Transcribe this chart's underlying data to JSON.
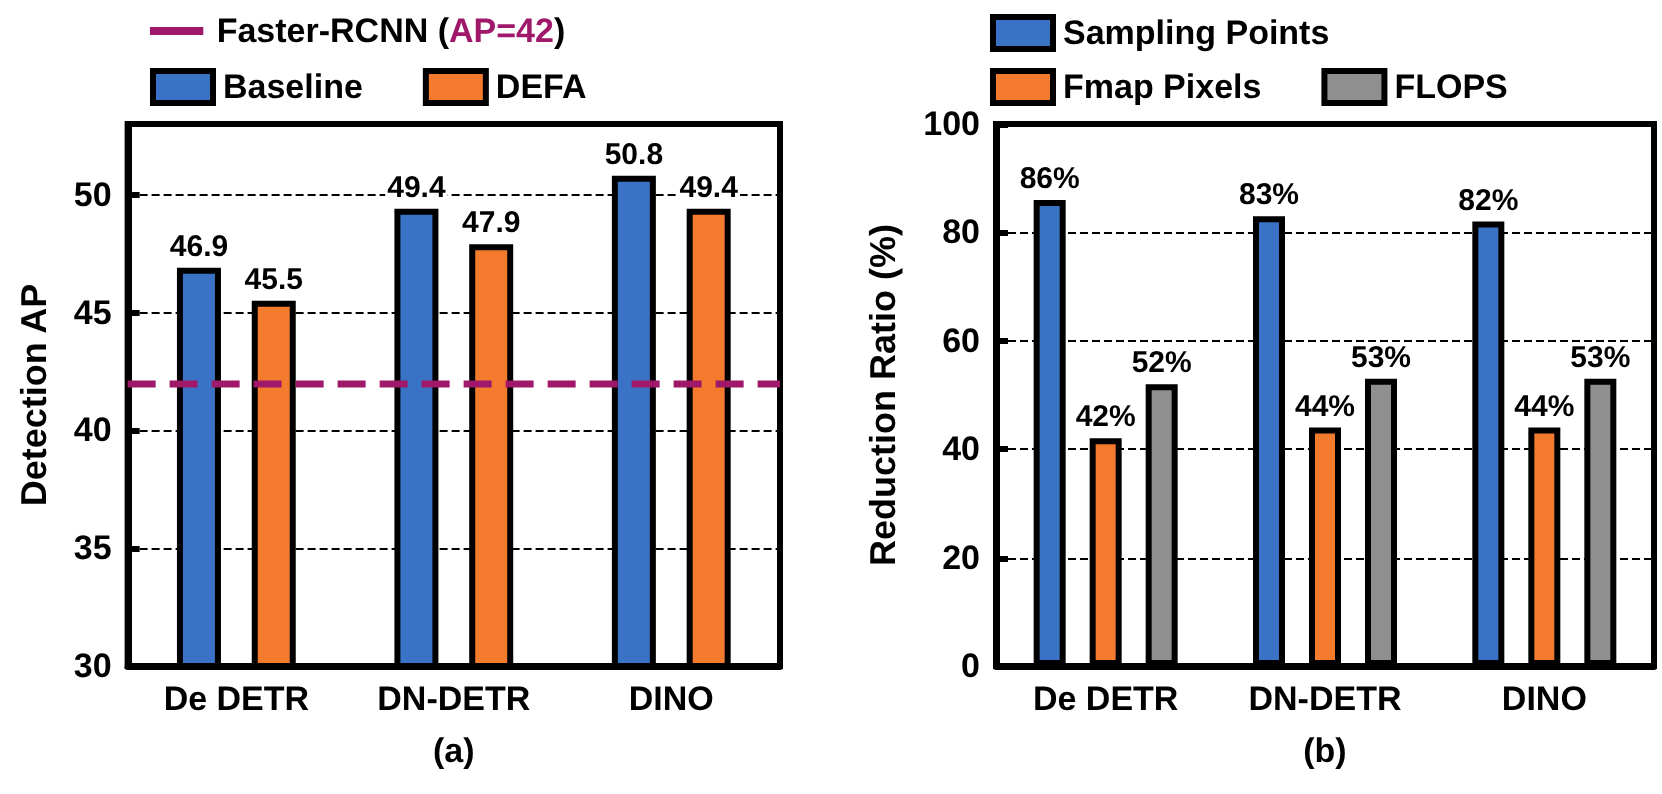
{
  "chart_data": [
    {
      "type": "bar",
      "xlabel": "(a)",
      "ylabel": "Detection AP",
      "categories": [
        "De DETR",
        "DN-DETR",
        "DINO"
      ],
      "series": [
        {
          "name": "Baseline",
          "color": "#3a73c5",
          "values": [
            46.9,
            49.4,
            50.8
          ]
        },
        {
          "name": "DEFA",
          "color": "#f47b2e",
          "values": [
            45.5,
            47.9,
            49.4
          ]
        }
      ],
      "ylim": [
        30,
        53
      ],
      "yticks": [
        30,
        35,
        40,
        45,
        50
      ],
      "grid": "y",
      "legend": "top",
      "data_labels": true,
      "ref_lines": [
        {
          "axis": "y",
          "value": 42,
          "label": "Faster-RCNN (AP=42)",
          "color": "#a0186a",
          "line_style": "dashed"
        }
      ]
    },
    {
      "type": "bar",
      "xlabel": "(b)",
      "ylabel": "Reduction Ratio (%)",
      "categories": [
        "De DETR",
        "DN-DETR",
        "DINO"
      ],
      "series": [
        {
          "name": "Sampling Points",
          "color": "#3a73c5",
          "values": [
            86,
            83,
            82
          ],
          "value_labels": [
            "86%",
            "83%",
            "82%"
          ]
        },
        {
          "name": "Fmap Pixels",
          "color": "#f47b2e",
          "values": [
            42,
            44,
            44
          ],
          "value_labels": [
            "42%",
            "44%",
            "44%"
          ]
        },
        {
          "name": "FLOPS",
          "color": "#8f8f8f",
          "values": [
            52,
            53,
            53
          ],
          "value_labels": [
            "52%",
            "53%",
            "53%"
          ]
        }
      ],
      "ylim": [
        0,
        100
      ],
      "yticks": [
        0,
        20,
        40,
        60,
        80,
        100
      ],
      "grid": "y",
      "legend": "top"
    }
  ]
}
